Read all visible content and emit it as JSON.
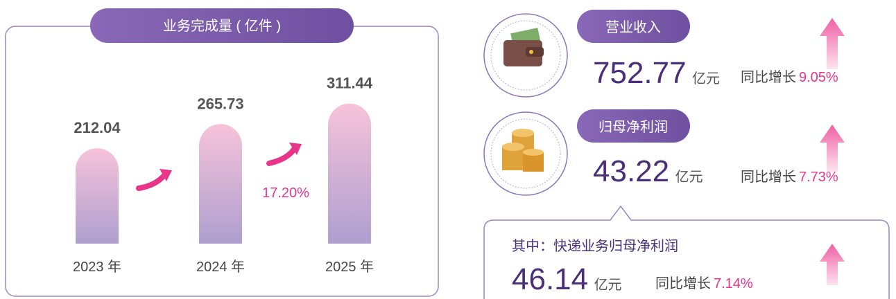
{
  "chart_data": {
    "type": "bar",
    "title": "业务完成量 ( 亿件 )",
    "categories": [
      "2023 年",
      "2024 年",
      "2025 年"
    ],
    "values": [
      212.04,
      265.73,
      311.44
    ],
    "growth_label": "17.20%"
  },
  "metrics": [
    {
      "label": "营业收入",
      "value": "752.77",
      "unit": "亿元",
      "yoy_label": "同比增长",
      "yoy": "9.05%"
    },
    {
      "label": "归母净利润",
      "value": "43.22",
      "unit": "亿元",
      "yoy_label": "同比增长",
      "yoy": "7.73%"
    }
  ],
  "sub_metric": {
    "label": "其中：快递业务归母净利润",
    "value": "46.14",
    "unit": "亿元",
    "yoy_label": "同比增长",
    "yoy": "7.14%"
  }
}
